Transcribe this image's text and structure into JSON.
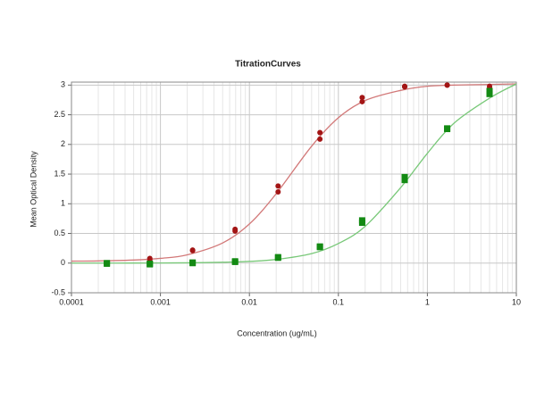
{
  "chart_data": {
    "type": "scatter",
    "title": "TitrationCurves",
    "x_label": "Concentration (ug/mL)",
    "y_label": "Mean Optical Density",
    "log_x": true,
    "grid": true,
    "xlim": [
      0.0001,
      10
    ],
    "ylim": [
      -0.5,
      3.05
    ],
    "xticks": [
      0.0001,
      0.001,
      0.01,
      0.1,
      1,
      10
    ],
    "xminorticks": [
      0.0002,
      0.0003,
      0.0004,
      0.0005,
      0.0006,
      0.0007,
      0.0008,
      0.0009,
      0.002,
      0.003,
      0.004,
      0.005,
      0.006,
      0.007,
      0.008,
      0.009,
      0.02,
      0.03,
      0.04,
      0.05,
      0.06,
      0.07,
      0.08,
      0.09,
      0.2,
      0.3,
      0.4,
      0.5,
      0.6,
      0.7,
      0.8,
      0.9,
      2,
      3,
      4,
      5,
      6,
      7,
      8,
      9
    ],
    "yticks": [
      -0.5,
      0,
      0.5,
      1,
      1.5,
      2,
      2.5,
      3
    ],
    "series": [
      {
        "color": "#a31515",
        "marker": "circle",
        "x": [
          0.00076,
          0.00076,
          0.0023,
          0.0023,
          0.0069,
          0.0069,
          0.021,
          0.021,
          0.062,
          0.062,
          0.185,
          0.185,
          0.556,
          0.556,
          1.67,
          1.67,
          5,
          5
        ],
        "values": [
          0.08,
          0.06,
          0.22,
          0.21,
          0.57,
          0.54,
          1.3,
          1.2,
          2.2,
          2.09,
          2.79,
          2.72,
          2.98,
          2.97,
          3.0,
          3.0,
          2.98,
          2.95
        ]
      },
      {
        "color": "#138a13",
        "marker": "square",
        "x": [
          0.00025,
          0.00025,
          0.00076,
          0.00076,
          0.0023,
          0.0023,
          0.0069,
          0.0069,
          0.021,
          0.021,
          0.062,
          0.062,
          0.185,
          0.185,
          0.556,
          0.556,
          1.67,
          1.67,
          5,
          5
        ],
        "values": [
          0.0,
          -0.01,
          -0.01,
          -0.02,
          0.0,
          0.01,
          0.02,
          0.03,
          0.1,
          0.09,
          0.28,
          0.27,
          0.72,
          0.68,
          1.45,
          1.4,
          2.27,
          2.26,
          2.9,
          2.85
        ]
      }
    ],
    "fits": [
      {
        "color": "#d27878",
        "x": [
          0.0001,
          0.0002,
          0.0005,
          0.001,
          0.002,
          0.005,
          0.01,
          0.02,
          0.05,
          0.1,
          0.2,
          0.5,
          1,
          2,
          5,
          10
        ],
        "values": [
          0.033,
          0.037,
          0.052,
          0.08,
          0.14,
          0.34,
          0.66,
          1.17,
          1.97,
          2.45,
          2.74,
          2.91,
          2.98,
          3.0,
          3.01,
          3.02
        ]
      },
      {
        "color": "#78c878",
        "x": [
          0.0001,
          0.0002,
          0.0005,
          0.001,
          0.002,
          0.005,
          0.01,
          0.02,
          0.05,
          0.1,
          0.2,
          0.5,
          1,
          2,
          5,
          10
        ],
        "values": [
          0.0,
          0.0004,
          0.001,
          0.002,
          0.005,
          0.014,
          0.029,
          0.061,
          0.16,
          0.33,
          0.62,
          1.27,
          1.85,
          2.36,
          2.78,
          3.02
        ]
      }
    ]
  }
}
